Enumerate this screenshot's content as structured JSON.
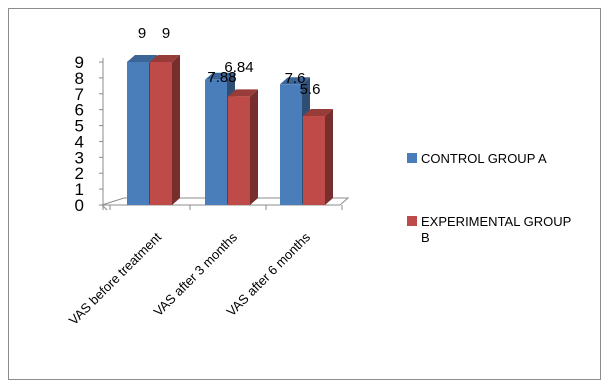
{
  "chart_data": {
    "type": "bar",
    "categories": [
      "VAS before treatment",
      "VAS after 3 months",
      "VAS after 6 months"
    ],
    "series": [
      {
        "name": "CONTROL GROUP A",
        "values": [
          9,
          7.88,
          7.6
        ],
        "value_labels": [
          "9",
          "7.88",
          "7.6"
        ],
        "color": "#4a7ebb"
      },
      {
        "name": "EXPERIMENTAL GROUP B",
        "values": [
          9,
          6.84,
          5.6
        ],
        "value_labels": [
          "9",
          "6.84",
          "5.6"
        ],
        "color": "#be4b48"
      }
    ],
    "yticks": [
      "0",
      "1",
      "2",
      "3",
      "4",
      "5",
      "6",
      "7",
      "8",
      "9"
    ],
    "ylim": [
      0,
      9
    ],
    "grid": false,
    "legend_position": "right",
    "style": "3d clustered column"
  }
}
